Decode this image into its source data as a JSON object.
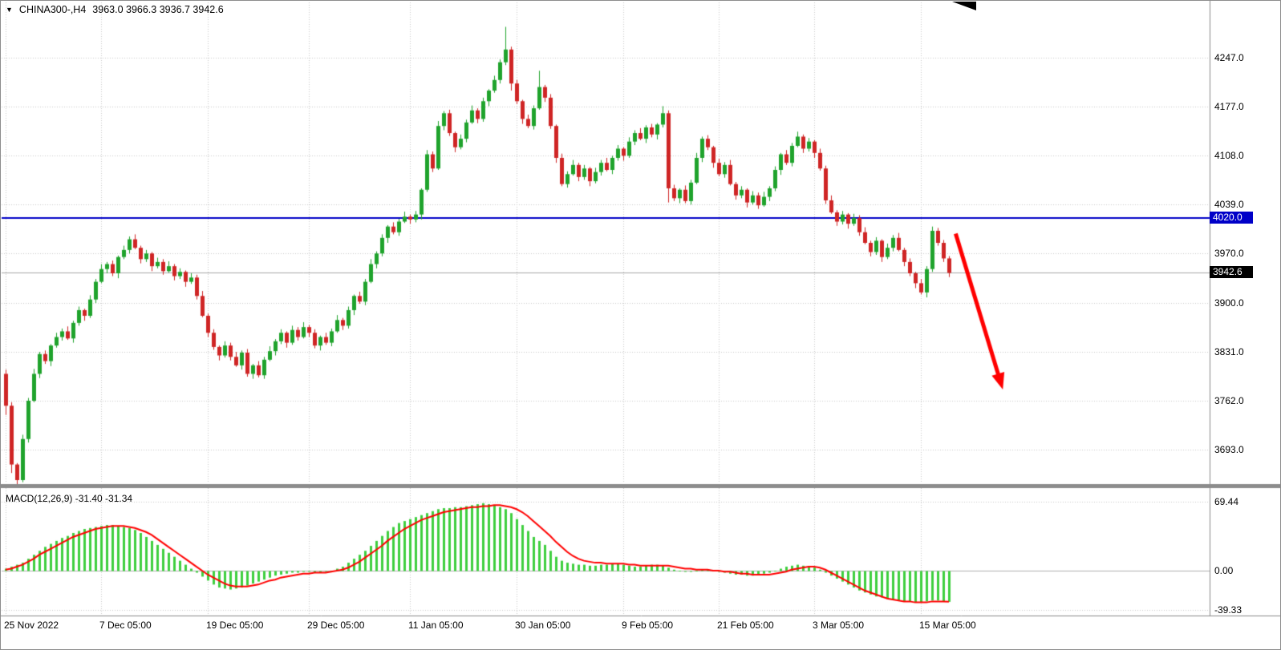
{
  "header": {
    "symbol_timeframe": "CHINA300-,H4",
    "ohlc_values": "3963.0 3966.3 3936.7 3942.6"
  },
  "icons": {
    "symbol_marker": "▼"
  },
  "macd_panel": {
    "label": "MACD(12,26,9) -31.40 -31.34"
  },
  "colors": {
    "background": "#FFFFFF",
    "grid": "#C9C9C9",
    "candle_up": "#1FA32C",
    "candle_down": "#CF2525",
    "macd_hist": "#3FCF3F",
    "macd_signal": "#FF0000",
    "hline": "#0000C8",
    "bid_line": "#A8A8A8",
    "arrow": "#FF0000",
    "separator": "#8C8C8C",
    "axis_text": "#000000"
  },
  "chart_data": {
    "type": "candlestick",
    "title": "CHINA300-,H4",
    "symbol": "CHINA300-",
    "timeframe": "H4",
    "current_candle_ohlc": {
      "open": 3963.0,
      "high": 3966.3,
      "low": 3936.7,
      "close": 3942.6
    },
    "price_range": [
      3650,
      4320
    ],
    "grid_prices": [
      4247,
      4177,
      4108,
      4039,
      3970,
      3900,
      3831,
      3762,
      3693
    ],
    "price_axis_labels": [
      {
        "text": "4247.0",
        "price": 4247.0
      },
      {
        "text": "4177.0",
        "price": 4177.0
      },
      {
        "text": "4108.0",
        "price": 4108.0
      },
      {
        "text": "4039.0",
        "price": 4039.0
      },
      {
        "text": "3970.0",
        "price": 3970.0
      },
      {
        "text": "3900.0",
        "price": 3900.0
      },
      {
        "text": "3831.0",
        "price": 3831.0
      },
      {
        "text": "3762.0",
        "price": 3762.0
      },
      {
        "text": "3693.0",
        "price": 3693.0
      }
    ],
    "hline_label": {
      "text": "4020.0",
      "price": 4020.0
    },
    "bid_label": {
      "text": "3942.6",
      "price": 3942.6
    },
    "horizontal_line_price": 4020.0,
    "bid_price": 3942.6,
    "macd_axis_labels": [
      {
        "text": "69.44",
        "value": 69.44
      },
      {
        "text": "0.00",
        "value": 0
      },
      {
        "text": "-39.33",
        "value": -39.33
      }
    ],
    "time_axis_labels": [
      {
        "text": "25 Nov 2022",
        "index": 0
      },
      {
        "text": "7 Dec 05:00",
        "index": 17
      },
      {
        "text": "19 Dec 05:00",
        "index": 36
      },
      {
        "text": "29 Dec 05:00",
        "index": 54
      },
      {
        "text": "11 Jan 05:00",
        "index": 72
      },
      {
        "text": "30 Jan 05:00",
        "index": 91
      },
      {
        "text": "9 Feb 05:00",
        "index": 110
      },
      {
        "text": "21 Feb 05:00",
        "index": 127
      },
      {
        "text": "3 Mar 05:00",
        "index": 144
      },
      {
        "text": "15 Mar 05:00",
        "index": 163
      }
    ],
    "trend_arrow": {
      "from_index": 169.2,
      "from_price": 3998,
      "to_index": 177.6,
      "to_price": 3778
    },
    "candles": [
      [
        3800,
        3806,
        3742,
        3755
      ],
      [
        3755,
        3760,
        3660,
        3672
      ],
      [
        3672,
        3674,
        3643,
        3650
      ],
      [
        3650,
        3714,
        3647,
        3708
      ],
      [
        3708,
        3766,
        3703,
        3762
      ],
      [
        3762,
        3807,
        3760,
        3800
      ],
      [
        3800,
        3831,
        3794,
        3828
      ],
      [
        3828,
        3833,
        3814,
        3818
      ],
      [
        3818,
        3842,
        3811,
        3840
      ],
      [
        3840,
        3858,
        3837,
        3852
      ],
      [
        3852,
        3864,
        3847,
        3860
      ],
      [
        3860,
        3867,
        3848,
        3850
      ],
      [
        3850,
        3875,
        3844,
        3872
      ],
      [
        3872,
        3895,
        3868,
        3890
      ],
      [
        3890,
        3892,
        3875,
        3882
      ],
      [
        3882,
        3911,
        3879,
        3905
      ],
      [
        3905,
        3934,
        3900,
        3930
      ],
      [
        3930,
        3955,
        3928,
        3948
      ],
      [
        3948,
        3958,
        3942,
        3955
      ],
      [
        3955,
        3960,
        3938,
        3942
      ],
      [
        3942,
        3967,
        3935,
        3965
      ],
      [
        3965,
        3981,
        3962,
        3975
      ],
      [
        3975,
        3994,
        3970,
        3990
      ],
      [
        3990,
        3997,
        3976,
        3978
      ],
      [
        3978,
        3981,
        3956,
        3962
      ],
      [
        3962,
        3975,
        3958,
        3970
      ],
      [
        3970,
        3972,
        3945,
        3952
      ],
      [
        3952,
        3964,
        3949,
        3958
      ],
      [
        3958,
        3962,
        3940,
        3945
      ],
      [
        3945,
        3959,
        3943,
        3952
      ],
      [
        3952,
        3955,
        3932,
        3938
      ],
      [
        3938,
        3949,
        3934,
        3944
      ],
      [
        3944,
        3946,
        3923,
        3930
      ],
      [
        3930,
        3942,
        3927,
        3936
      ],
      [
        3936,
        3940,
        3905,
        3910
      ],
      [
        3910,
        3917,
        3880,
        3882
      ],
      [
        3882,
        3885,
        3852,
        3858
      ],
      [
        3858,
        3863,
        3834,
        3838
      ],
      [
        3838,
        3840,
        3819,
        3826
      ],
      [
        3826,
        3846,
        3823,
        3840
      ],
      [
        3840,
        3844,
        3819,
        3824
      ],
      [
        3824,
        3831,
        3810,
        3812
      ],
      [
        3812,
        3833,
        3806,
        3830
      ],
      [
        3830,
        3835,
        3796,
        3800
      ],
      [
        3800,
        3814,
        3793,
        3812
      ],
      [
        3812,
        3818,
        3795,
        3798
      ],
      [
        3798,
        3824,
        3793,
        3820
      ],
      [
        3820,
        3839,
        3818,
        3832
      ],
      [
        3832,
        3849,
        3826,
        3846
      ],
      [
        3846,
        3863,
        3842,
        3858
      ],
      [
        3858,
        3860,
        3837,
        3844
      ],
      [
        3844,
        3868,
        3841,
        3862
      ],
      [
        3862,
        3866,
        3847,
        3852
      ],
      [
        3852,
        3873,
        3850,
        3866
      ],
      [
        3866,
        3869,
        3852,
        3858
      ],
      [
        3858,
        3863,
        3836,
        3840
      ],
      [
        3840,
        3854,
        3833,
        3852
      ],
      [
        3852,
        3858,
        3841,
        3844
      ],
      [
        3844,
        3864,
        3839,
        3860
      ],
      [
        3860,
        3883,
        3858,
        3876
      ],
      [
        3876,
        3879,
        3862,
        3868
      ],
      [
        3868,
        3895,
        3864,
        3890
      ],
      [
        3890,
        3912,
        3883,
        3910
      ],
      [
        3910,
        3916,
        3899,
        3902
      ],
      [
        3902,
        3934,
        3897,
        3930
      ],
      [
        3930,
        3962,
        3928,
        3955
      ],
      [
        3955,
        3973,
        3949,
        3970
      ],
      [
        3970,
        3997,
        3966,
        3992
      ],
      [
        3992,
        4010,
        3985,
        4008
      ],
      [
        4008,
        4014,
        3997,
        4000
      ],
      [
        4000,
        4019,
        3995,
        4015
      ],
      [
        4015,
        4029,
        4013,
        4022
      ],
      [
        4022,
        4025,
        4012,
        4018
      ],
      [
        4018,
        4030,
        4014,
        4025
      ],
      [
        4025,
        4062,
        4018,
        4060
      ],
      [
        4060,
        4116,
        4057,
        4110
      ],
      [
        4110,
        4114,
        4085,
        4090
      ],
      [
        4090,
        4157,
        4088,
        4150
      ],
      [
        4150,
        4171,
        4144,
        4168
      ],
      [
        4168,
        4173,
        4136,
        4140
      ],
      [
        4140,
        4142,
        4113,
        4120
      ],
      [
        4120,
        4138,
        4117,
        4132
      ],
      [
        4132,
        4159,
        4127,
        4155
      ],
      [
        4155,
        4179,
        4153,
        4172
      ],
      [
        4172,
        4175,
        4154,
        4160
      ],
      [
        4160,
        4190,
        4156,
        4185
      ],
      [
        4185,
        4202,
        4178,
        4200
      ],
      [
        4200,
        4221,
        4197,
        4215
      ],
      [
        4215,
        4244,
        4210,
        4240
      ],
      [
        4240,
        4290,
        4236,
        4258
      ],
      [
        4258,
        4262,
        4200,
        4210
      ],
      [
        4210,
        4215,
        4181,
        4185
      ],
      [
        4185,
        4187,
        4153,
        4160
      ],
      [
        4160,
        4166,
        4147,
        4150
      ],
      [
        4150,
        4179,
        4145,
        4175
      ],
      [
        4175,
        4228,
        4173,
        4205
      ],
      [
        4205,
        4208,
        4184,
        4190
      ],
      [
        4190,
        4195,
        4146,
        4150
      ],
      [
        4150,
        4152,
        4098,
        4105
      ],
      [
        4105,
        4111,
        4065,
        4068
      ],
      [
        4068,
        4086,
        4063,
        4082
      ],
      [
        4082,
        4102,
        4080,
        4095
      ],
      [
        4095,
        4098,
        4072,
        4078
      ],
      [
        4078,
        4095,
        4074,
        4090
      ],
      [
        4090,
        4092,
        4065,
        4072
      ],
      [
        4072,
        4091,
        4069,
        4085
      ],
      [
        4085,
        4102,
        4080,
        4098
      ],
      [
        4098,
        4105,
        4086,
        4088
      ],
      [
        4088,
        4108,
        4082,
        4105
      ],
      [
        4105,
        4123,
        4101,
        4118
      ],
      [
        4118,
        4120,
        4101,
        4108
      ],
      [
        4108,
        4134,
        4105,
        4128
      ],
      [
        4128,
        4144,
        4123,
        4140
      ],
      [
        4140,
        4147,
        4130,
        4132
      ],
      [
        4132,
        4151,
        4126,
        4148
      ],
      [
        4148,
        4153,
        4134,
        4138
      ],
      [
        4138,
        4154,
        4131,
        4152
      ],
      [
        4152,
        4178,
        4148,
        4168
      ],
      [
        4168,
        4172,
        4042,
        4062
      ],
      [
        4062,
        4067,
        4044,
        4048
      ],
      [
        4048,
        4062,
        4041,
        4060
      ],
      [
        4060,
        4066,
        4041,
        4044
      ],
      [
        4044,
        4074,
        4039,
        4070
      ],
      [
        4070,
        4112,
        4068,
        4105
      ],
      [
        4105,
        4135,
        4099,
        4132
      ],
      [
        4132,
        4137,
        4116,
        4120
      ],
      [
        4120,
        4122,
        4091,
        4098
      ],
      [
        4098,
        4104,
        4079,
        4082
      ],
      [
        4082,
        4099,
        4077,
        4095
      ],
      [
        4095,
        4102,
        4066,
        4068
      ],
      [
        4068,
        4071,
        4046,
        4052
      ],
      [
        4052,
        4065,
        4048,
        4060
      ],
      [
        4060,
        4062,
        4035,
        4042
      ],
      [
        4042,
        4058,
        4039,
        4052
      ],
      [
        4052,
        4056,
        4033,
        4038
      ],
      [
        4038,
        4057,
        4036,
        4050
      ],
      [
        4050,
        4065,
        4044,
        4062
      ],
      [
        4062,
        4093,
        4058,
        4088
      ],
      [
        4088,
        4112,
        4081,
        4110
      ],
      [
        4110,
        4116,
        4095,
        4098
      ],
      [
        4098,
        4126,
        4093,
        4122
      ],
      [
        4122,
        4142,
        4120,
        4135
      ],
      [
        4135,
        4138,
        4112,
        4118
      ],
      [
        4118,
        4133,
        4114,
        4128
      ],
      [
        4128,
        4130,
        4105,
        4112
      ],
      [
        4112,
        4118,
        4087,
        4090
      ],
      [
        4090,
        4094,
        4040,
        4045
      ],
      [
        4045,
        4052,
        4026,
        4028
      ],
      [
        4028,
        4031,
        4009,
        4015
      ],
      [
        4015,
        4030,
        4011,
        4025
      ],
      [
        4025,
        4027,
        4005,
        4012
      ],
      [
        4012,
        4026,
        4009,
        4020
      ],
      [
        4020,
        4024,
        3995,
        4000
      ],
      [
        4000,
        4007,
        3983,
        3985
      ],
      [
        3985,
        3988,
        3966,
        3972
      ],
      [
        3972,
        3993,
        3968,
        3988
      ],
      [
        3988,
        3990,
        3958,
        3965
      ],
      [
        3965,
        3984,
        3962,
        3978
      ],
      [
        3978,
        3996,
        3973,
        3992
      ],
      [
        3992,
        3999,
        3973,
        3975
      ],
      [
        3975,
        3978,
        3952,
        3958
      ],
      [
        3958,
        3963,
        3938,
        3942
      ],
      [
        3942,
        3944,
        3921,
        3928
      ],
      [
        3928,
        3934,
        3912,
        3915
      ],
      [
        3915,
        3952,
        3908,
        3948
      ],
      [
        3948,
        4008,
        3944,
        4002
      ],
      [
        4002,
        4006,
        3981,
        3985
      ],
      [
        3985,
        3989,
        3958,
        3963
      ],
      [
        3963.0,
        3966.3,
        3936.7,
        3942.6
      ]
    ],
    "macd": {
      "params": "12,26,9",
      "main_value": -31.4,
      "signal_value": -31.34,
      "ylim": [
        -42,
        80
      ],
      "histogram": [
        2,
        4,
        6,
        8,
        12,
        16,
        20,
        24,
        27,
        30,
        33,
        35,
        38,
        40,
        42,
        43,
        44,
        45,
        46,
        46,
        45,
        44,
        43,
        41,
        38,
        34,
        30,
        26,
        22,
        18,
        14,
        10,
        6,
        2,
        -2,
        -6,
        -10,
        -14,
        -17,
        -18,
        -19,
        -18,
        -17,
        -15,
        -13,
        -11,
        -9,
        -7,
        -5,
        -4,
        -3,
        -2,
        -2,
        -1,
        -1,
        -2,
        -2,
        -1,
        0,
        2,
        4,
        8,
        12,
        16,
        20,
        25,
        30,
        35,
        40,
        44,
        48,
        50,
        52,
        54,
        56,
        58,
        60,
        62,
        63,
        63,
        64,
        64,
        65,
        66,
        67,
        68,
        67,
        66,
        64,
        62,
        58,
        52,
        46,
        40,
        34,
        30,
        26,
        20,
        14,
        10,
        8,
        7,
        6,
        6,
        5,
        5,
        6,
        6,
        7,
        7,
        6,
        5,
        4,
        4,
        5,
        6,
        6,
        5,
        3,
        1,
        0,
        -1,
        -1,
        0,
        1,
        1,
        0,
        -1,
        -2,
        -3,
        -4,
        -4,
        -5,
        -5,
        -4,
        -3,
        -2,
        0,
        2,
        4,
        5,
        6,
        5,
        4,
        3,
        1,
        -2,
        -5,
        -8,
        -11,
        -14,
        -17,
        -20,
        -22,
        -24,
        -26,
        -27,
        -28,
        -29,
        -30,
        -31,
        -31,
        -32,
        -32,
        -31,
        -30,
        -30,
        -31,
        -31.4
      ],
      "signal": [
        1,
        2,
        4,
        6,
        9,
        12,
        16,
        19,
        22,
        25,
        28,
        31,
        34,
        36,
        38,
        40,
        42,
        43,
        44,
        45,
        45,
        45,
        44,
        43,
        41,
        39,
        36,
        32,
        28,
        24,
        20,
        16,
        12,
        8,
        4,
        0,
        -4,
        -7,
        -10,
        -13,
        -15,
        -16,
        -16,
        -16,
        -15,
        -14,
        -12,
        -10,
        -9,
        -7,
        -6,
        -5,
        -4,
        -3,
        -3,
        -2,
        -2,
        -2,
        -1,
        0,
        1,
        3,
        6,
        9,
        13,
        17,
        21,
        25,
        30,
        34,
        38,
        42,
        45,
        48,
        51,
        53,
        55,
        57,
        59,
        60,
        61,
        62,
        63,
        64,
        64,
        65,
        65,
        66,
        66,
        65,
        64,
        62,
        59,
        55,
        50,
        45,
        40,
        35,
        29,
        24,
        19,
        15,
        12,
        10,
        9,
        8,
        8,
        7,
        7,
        7,
        7,
        6,
        6,
        5,
        5,
        5,
        5,
        5,
        5,
        4,
        3,
        2,
        2,
        1,
        1,
        1,
        0,
        0,
        -1,
        -1,
        -2,
        -3,
        -3,
        -4,
        -4,
        -4,
        -4,
        -3,
        -2,
        -1,
        1,
        2,
        3,
        4,
        4,
        3,
        1,
        -2,
        -5,
        -8,
        -11,
        -14,
        -17,
        -20,
        -22,
        -24,
        -26,
        -28,
        -29,
        -30,
        -31,
        -31,
        -32,
        -32,
        -32,
        -31,
        -31,
        -31,
        -31.34
      ]
    }
  }
}
